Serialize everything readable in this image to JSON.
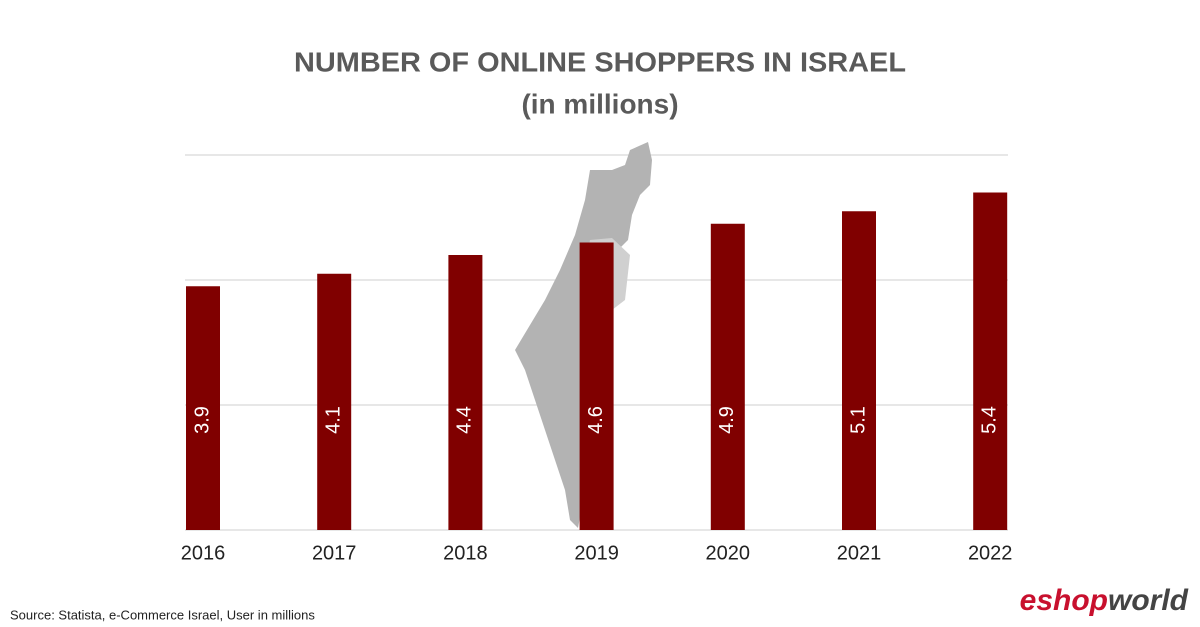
{
  "chart_data": {
    "type": "bar",
    "title": "NUMBER OF ONLINE SHOPPERS IN ISRAEL",
    "subtitle": "(in millions)",
    "categories": [
      "2016",
      "2017",
      "2018",
      "2019",
      "2020",
      "2021",
      "2022"
    ],
    "values": [
      3.9,
      4.1,
      4.4,
      4.6,
      4.9,
      5.1,
      5.4
    ],
    "color": "#800000",
    "ylim": [
      0,
      6
    ],
    "yticks": [
      0,
      2,
      4,
      6
    ],
    "grid": true,
    "source": "Source: Statista, e-Commerce Israel, User in millions",
    "brand": {
      "prefix": "eshop",
      "suffix": "world"
    }
  }
}
